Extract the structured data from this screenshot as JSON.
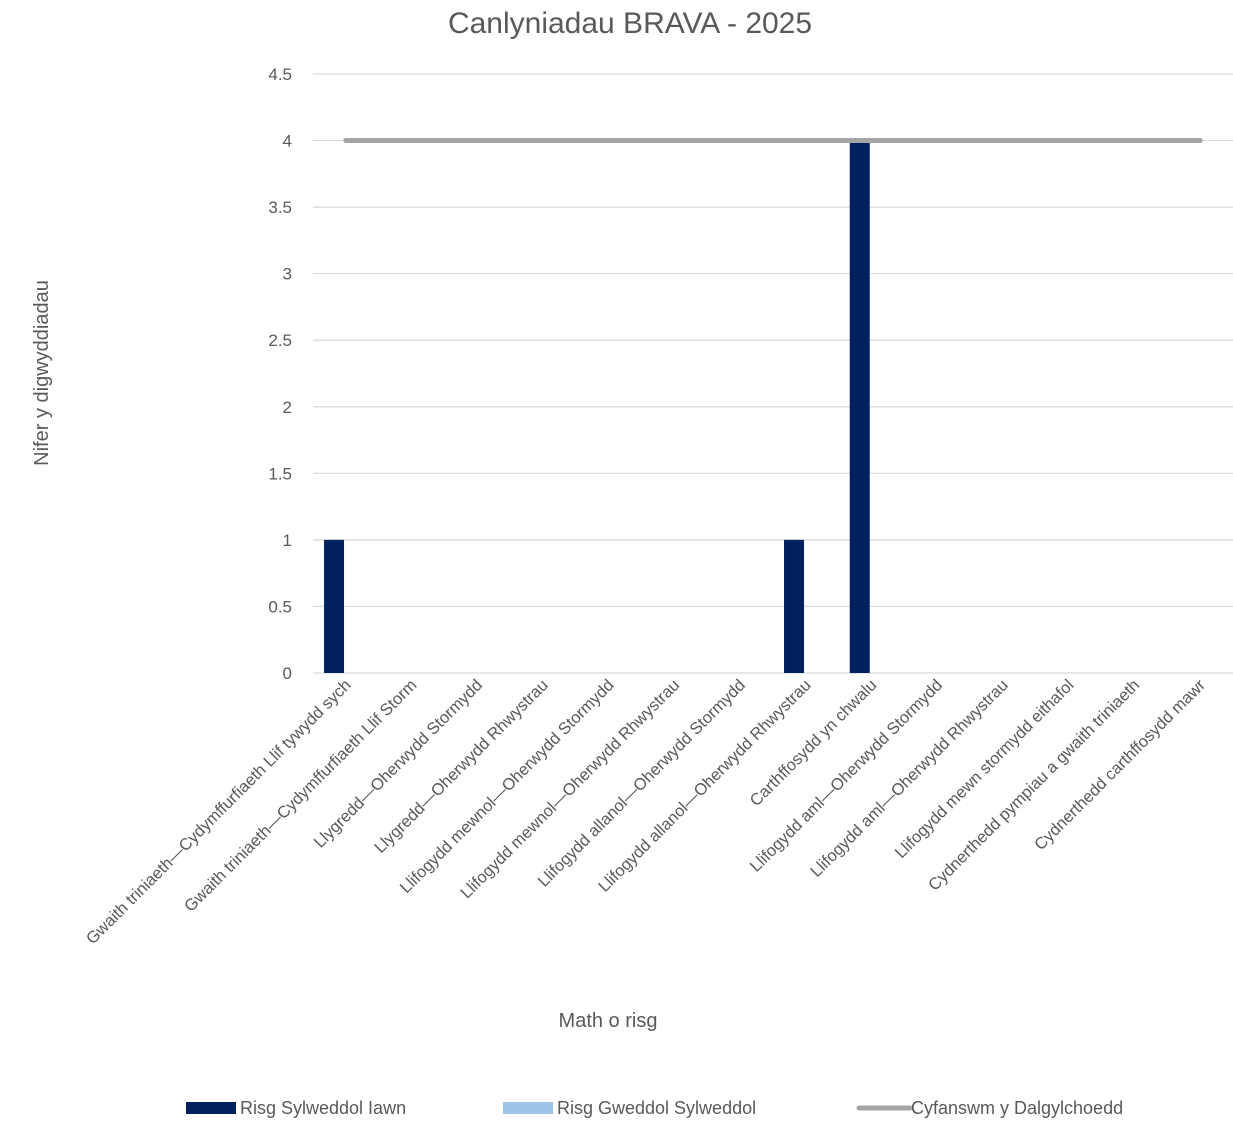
{
  "chart_data": {
    "type": "bar",
    "title": "Canlyniadau BRAVA - 2025",
    "xlabel": "Math o risg",
    "ylabel": "Nifer y digwyddiadau",
    "ylim": [
      0,
      4.5
    ],
    "yticks": [
      "0",
      "0.5",
      "1",
      "1.5",
      "2",
      "2.5",
      "3",
      "3.5",
      "4",
      "4.5"
    ],
    "grid": true,
    "legend_position": "bottom",
    "categories": [
      "Gwaith triniaeth—Cydymffurfiaeth Llif tywydd sych",
      "Gwaith triniaeth—Cydymffurfiaeth Llif Storm",
      "Llygredd—Oherwydd Stormydd",
      "Llygredd—Oherwydd Rhwystrau",
      "Llifogydd mewnol—Oherwydd Stormydd",
      "Llifogydd mewnol—Oherwydd Rhwystrau",
      "Llifogydd allanol—Oherwydd Stormydd",
      "Llifogydd allanol—Oherwydd Rhwystrau",
      "Carthffosydd yn chwalu",
      "Llifogydd aml—Oherwydd Stormydd",
      "Llifogydd aml—Oherwydd Rhwystrau",
      "Llifogydd mewn stormydd eithafol",
      "Cydnerthedd pympiau a gwaith triniaeth",
      "Cydnerthedd carthffosydd mawr"
    ],
    "series": [
      {
        "name": "Risg Sylweddol Iawn",
        "kind": "bar",
        "color": "#002060",
        "values": [
          1,
          0,
          0,
          0,
          0,
          0,
          0,
          1,
          4,
          0,
          0,
          0,
          0,
          0
        ]
      },
      {
        "name": "Risg Gweddol Sylweddol",
        "kind": "bar",
        "color": "#9dc3e6",
        "values": [
          0,
          0,
          0,
          0,
          0,
          0,
          0,
          0,
          0,
          0,
          0,
          0,
          0,
          0
        ]
      },
      {
        "name": "Cyfanswm y Dalgylchoedd",
        "kind": "line",
        "color": "#a5a5a5",
        "values": [
          4,
          4,
          4,
          4,
          4,
          4,
          4,
          4,
          4,
          4,
          4,
          4,
          4,
          4
        ]
      }
    ]
  }
}
